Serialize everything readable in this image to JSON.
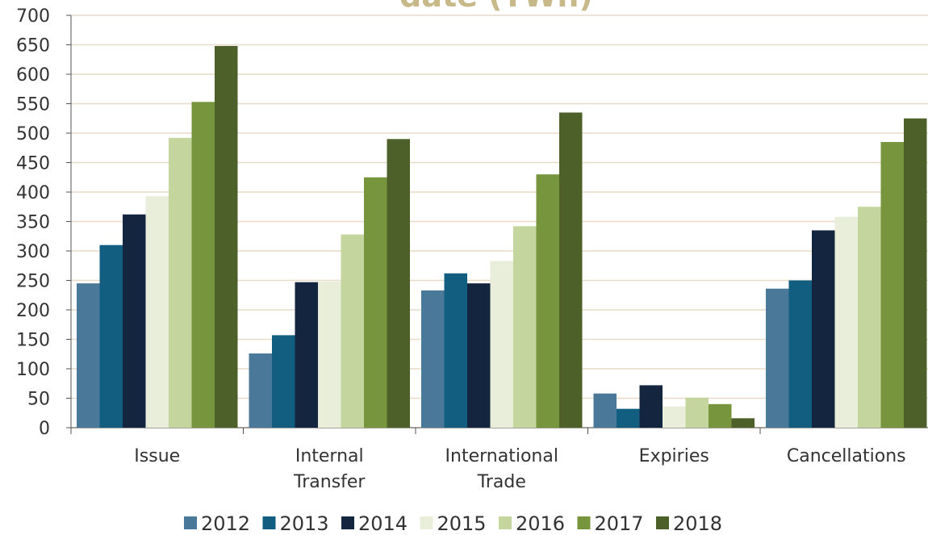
{
  "chart_data": {
    "type": "bar",
    "title": "date (TWh)",
    "categories": [
      "Issue",
      "Internal Transfer",
      "International Trade",
      "Expiries",
      "Cancellations"
    ],
    "series": [
      {
        "name": "2012",
        "color": "#4a7898",
        "values": [
          245,
          126,
          233,
          58,
          236
        ]
      },
      {
        "name": "2013",
        "color": "#115e80",
        "values": [
          310,
          157,
          262,
          32,
          250
        ]
      },
      {
        "name": "2014",
        "color": "#14263f",
        "values": [
          362,
          247,
          245,
          72,
          335
        ]
      },
      {
        "name": "2015",
        "color": "#e9eedb",
        "values": [
          393,
          248,
          283,
          36,
          358
        ]
      },
      {
        "name": "2016",
        "color": "#c4d59e",
        "values": [
          492,
          328,
          342,
          51,
          375
        ]
      },
      {
        "name": "2017",
        "color": "#77953d",
        "values": [
          553,
          425,
          430,
          40,
          485
        ]
      },
      {
        "name": "2018",
        "color": "#4e6029",
        "values": [
          648,
          490,
          535,
          16,
          525
        ]
      }
    ],
    "ylim": [
      0,
      700
    ],
    "yticks": [
      0,
      50,
      100,
      150,
      200,
      250,
      300,
      350,
      400,
      450,
      500,
      550,
      600,
      650,
      700
    ],
    "grid": true,
    "legend": "bottom"
  }
}
